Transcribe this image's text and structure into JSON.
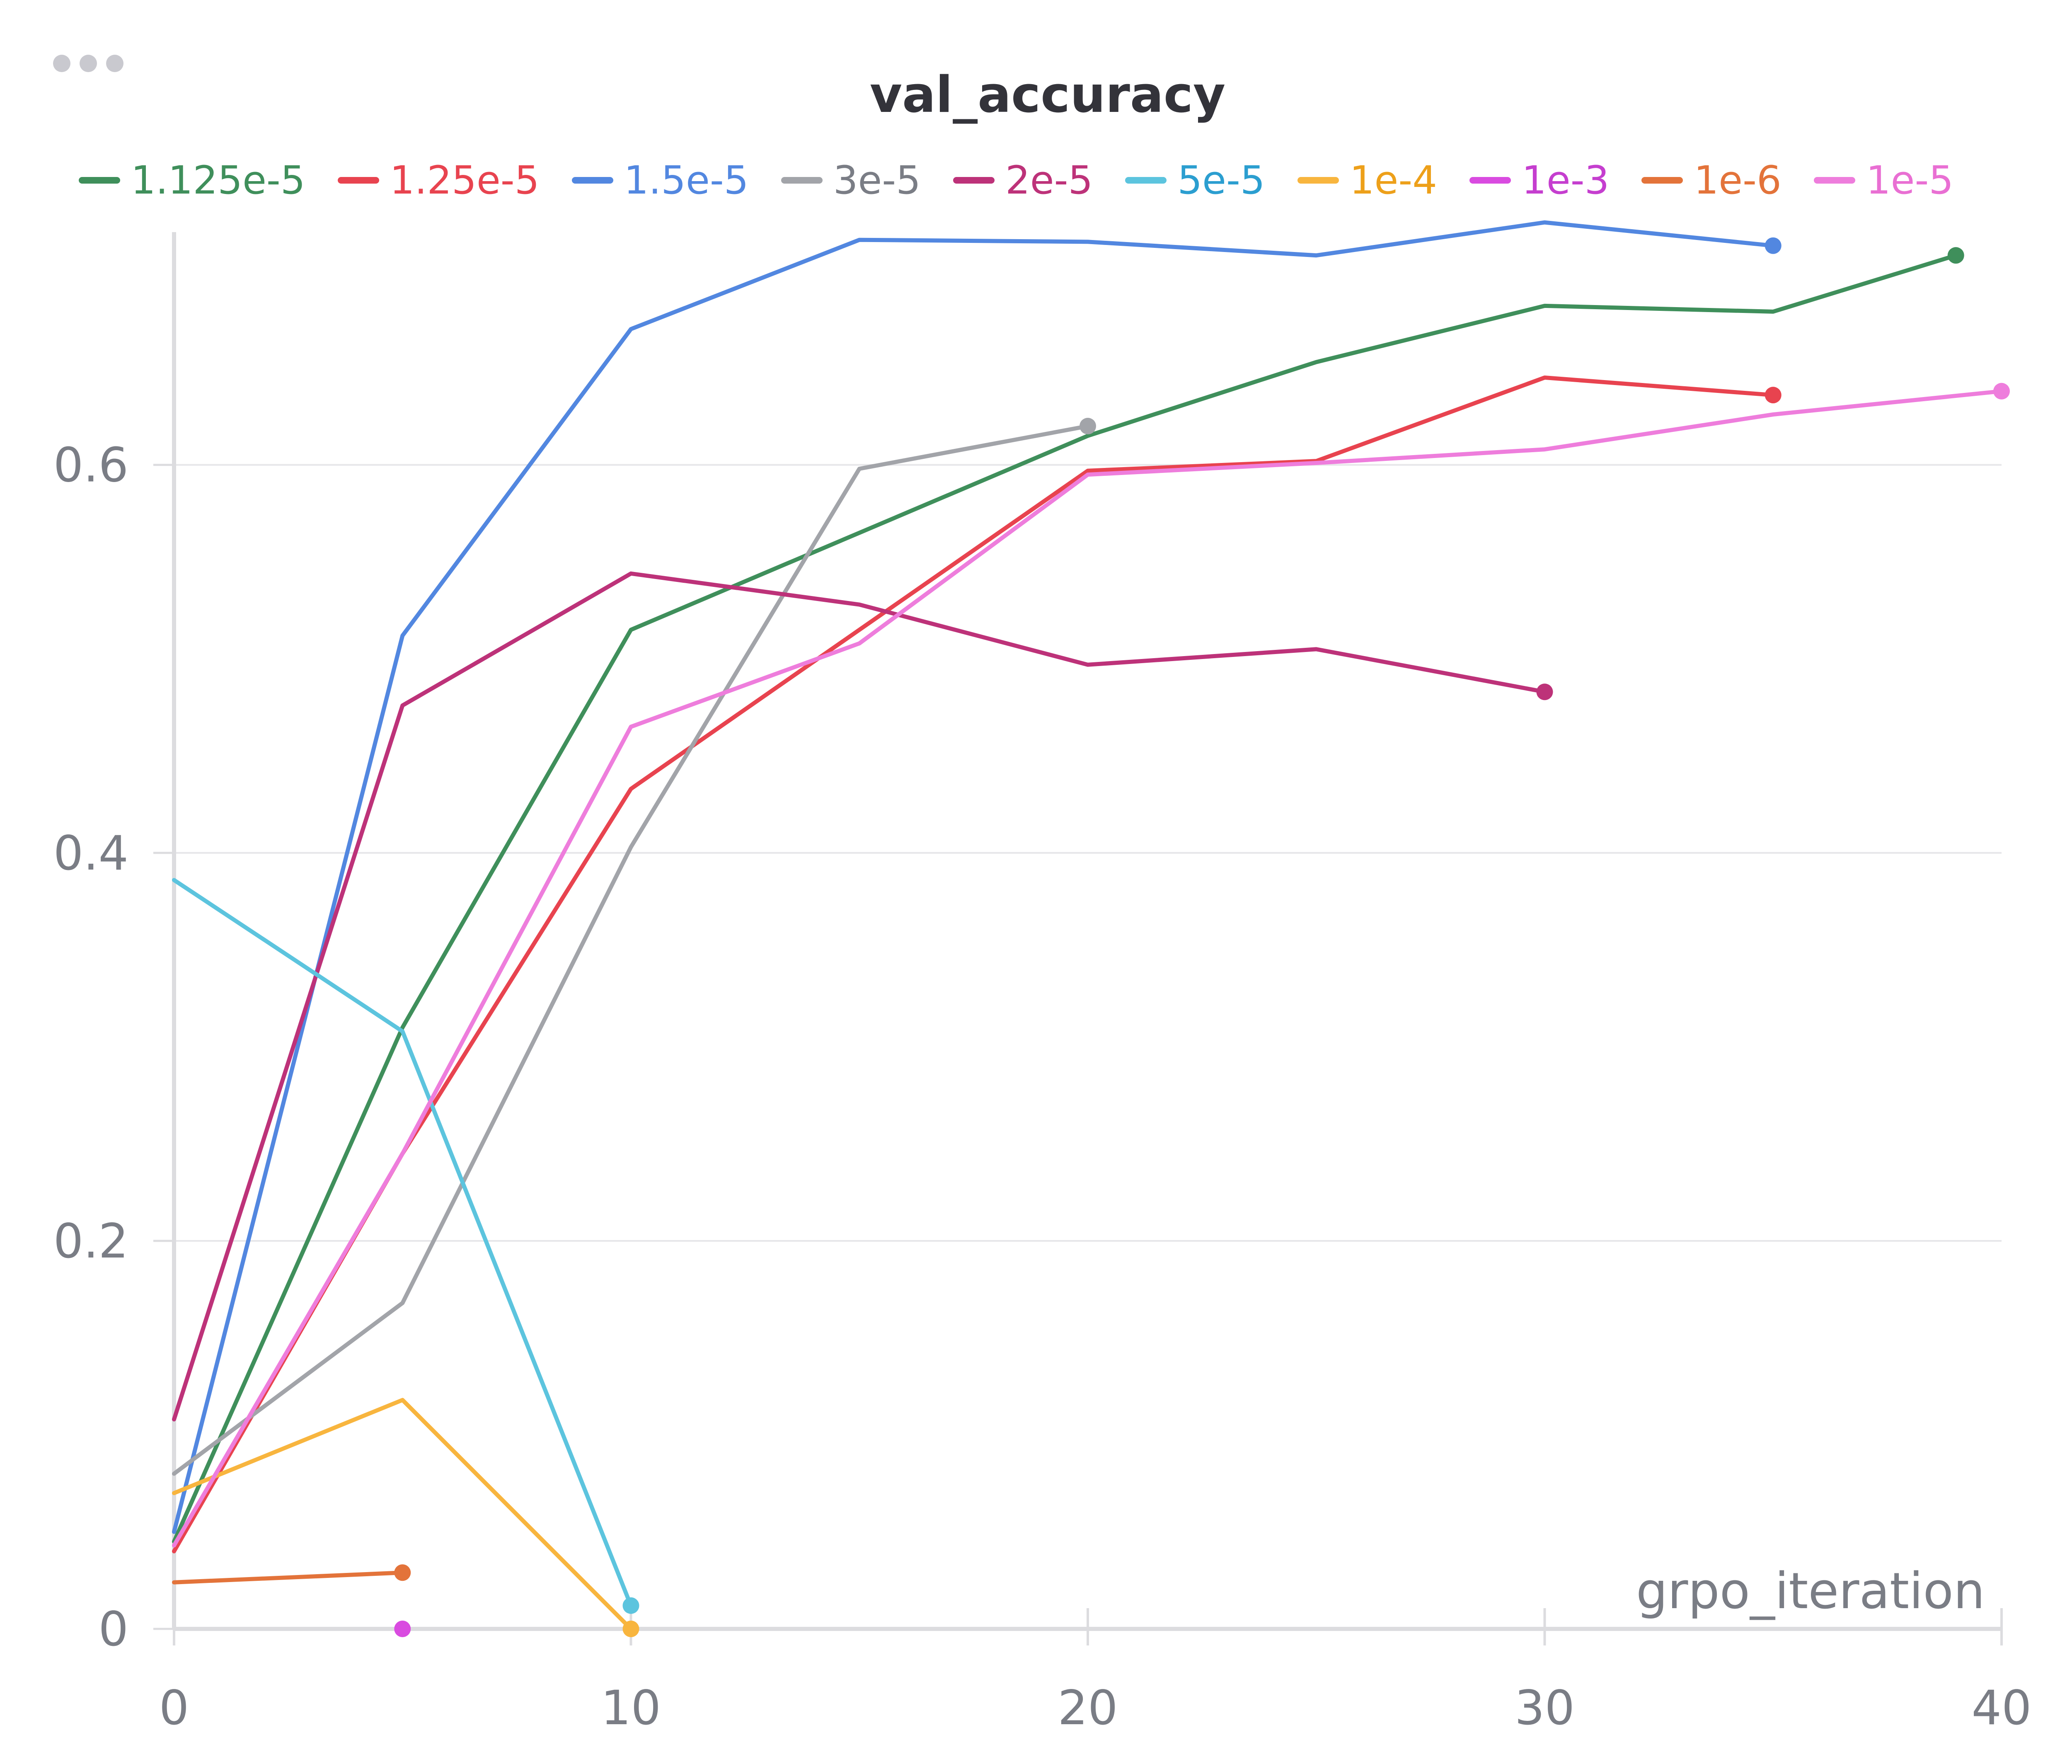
{
  "panel": {
    "menu_icon": "more-horizontal-icon"
  },
  "chart_data": {
    "type": "line",
    "title": "val_accuracy",
    "xlabel": "grpo_iteration",
    "ylabel": "",
    "xlim": [
      0,
      40
    ],
    "ylim": [
      0,
      0.72
    ],
    "x_ticks": [
      0,
      10,
      20,
      30,
      40
    ],
    "y_ticks": [
      0,
      0.2,
      0.4,
      0.6
    ],
    "x_tick_labels": [
      "0",
      "10",
      "20",
      "30",
      "40"
    ],
    "y_tick_labels": [
      "0",
      "0.2",
      "0.4",
      "0.6"
    ],
    "grid": "horizontal",
    "legend_position": "top",
    "series": [
      {
        "name": "1.125e-5",
        "color": "#3f8f5b",
        "text_color": "#3f8f5b",
        "x": [
          0,
          5,
          10,
          15,
          20,
          25,
          30,
          35,
          39
        ],
        "y": [
          0.045,
          0.31,
          0.515,
          0.565,
          0.615,
          0.653,
          0.682,
          0.679,
          0.708
        ]
      },
      {
        "name": "1.25e-5",
        "color": "#e8434f",
        "text_color": "#e8434f",
        "x": [
          0,
          5,
          10,
          15,
          20,
          25,
          30,
          35
        ],
        "y": [
          0.04,
          0.245,
          0.433,
          0.515,
          0.597,
          0.602,
          0.645,
          0.636
        ]
      },
      {
        "name": "1.5e-5",
        "color": "#5287e0",
        "text_color": "#5287e0",
        "x": [
          0,
          5,
          10,
          15,
          20,
          25,
          30,
          35
        ],
        "y": [
          0.05,
          0.512,
          0.67,
          0.716,
          0.715,
          0.708,
          0.725,
          0.713
        ]
      },
      {
        "name": "3e-5",
        "color": "#a2a4a9",
        "text_color": "#7a7d85",
        "x": [
          0,
          5,
          10,
          15,
          20
        ],
        "y": [
          0.08,
          0.168,
          0.403,
          0.598,
          0.62
        ]
      },
      {
        "name": "2e-5",
        "color": "#bd3279",
        "text_color": "#bd3279",
        "x": [
          0,
          5,
          10,
          15,
          20,
          25,
          30
        ],
        "y": [
          0.108,
          0.476,
          0.544,
          0.528,
          0.497,
          0.505,
          0.483
        ]
      },
      {
        "name": "5e-5",
        "color": "#5cc4de",
        "text_color": "#2b9ed0",
        "x": [
          0,
          5,
          10
        ],
        "y": [
          0.386,
          0.308,
          0.012
        ]
      },
      {
        "name": "1e-4",
        "color": "#f8b53e",
        "text_color": "#eda01a",
        "x": [
          0,
          5,
          10
        ],
        "y": [
          0.07,
          0.118,
          0.0
        ]
      },
      {
        "name": "1e-3",
        "color": "#d94be0",
        "text_color": "#c53ecf",
        "x": [
          5
        ],
        "y": [
          0.0
        ]
      },
      {
        "name": "1e-6",
        "color": "#e3733a",
        "text_color": "#e3733a",
        "x": [
          0,
          5
        ],
        "y": [
          0.024,
          0.029
        ]
      },
      {
        "name": "1e-5",
        "color": "#ee7ddc",
        "text_color": "#e96fd3",
        "x": [
          0,
          5,
          10,
          15,
          20,
          25,
          30,
          35,
          40
        ],
        "y": [
          0.043,
          0.245,
          0.465,
          0.508,
          0.595,
          0.601,
          0.608,
          0.626,
          0.638
        ]
      }
    ]
  }
}
